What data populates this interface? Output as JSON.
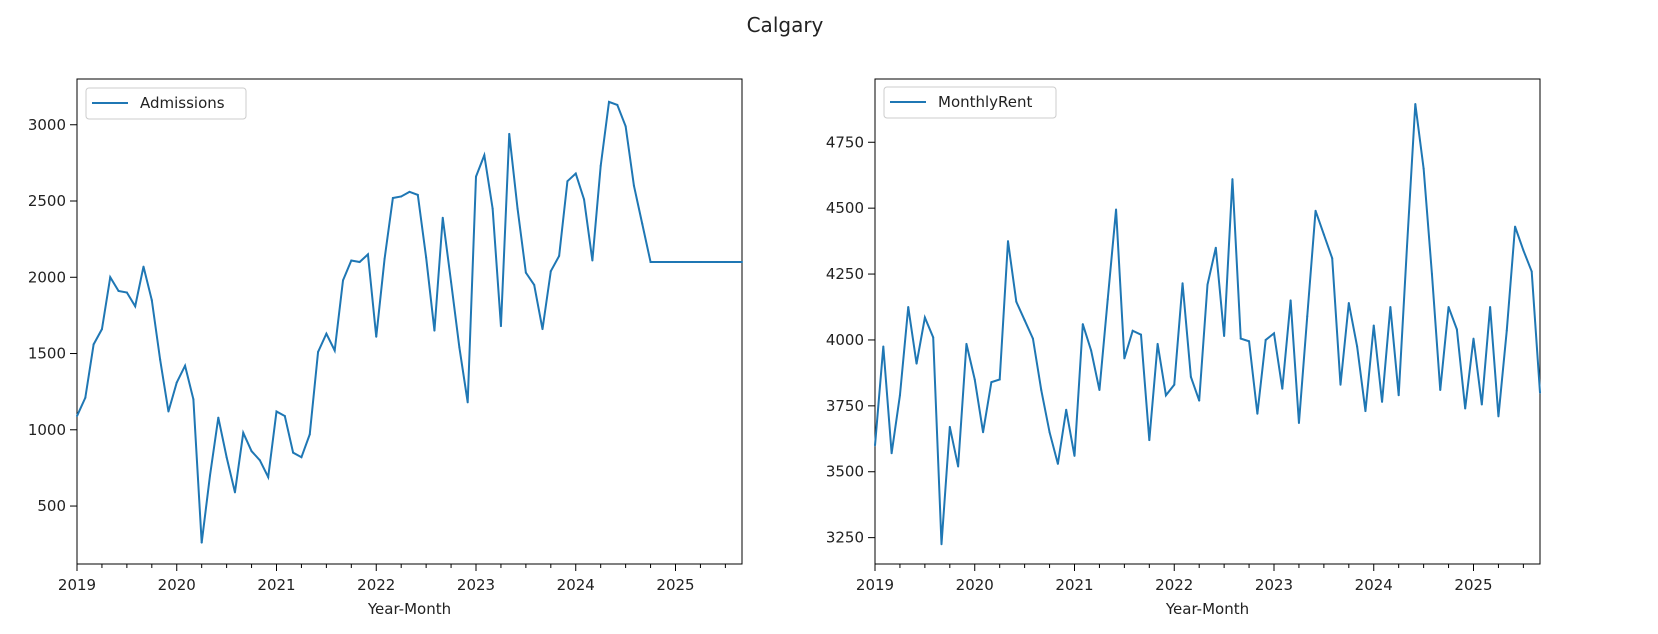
{
  "suptitle": "Calgary",
  "colors": {
    "series": "#1f77b4",
    "text": "#222222",
    "axes": "#000000"
  },
  "chart_data": [
    {
      "type": "line",
      "xlabel": "Year-Month",
      "ylabel": "",
      "xlim": [
        "2019-01",
        "2025-09"
      ],
      "ylim": [
        120,
        3300
      ],
      "x_tick_labels": [
        "2019",
        "2020",
        "2021",
        "2022",
        "2023",
        "2024",
        "2025"
      ],
      "y_ticks": [
        500,
        1000,
        1500,
        2000,
        2500,
        3000
      ],
      "y_tick_labels": [
        "500",
        "1000",
        "1500",
        "2000",
        "2500",
        "3000"
      ],
      "legend": "upper-left",
      "grid": false,
      "series": [
        {
          "name": "Admissions",
          "x": [
            "2019-01",
            "2019-02",
            "2019-03",
            "2019-04",
            "2019-05",
            "2019-06",
            "2019-07",
            "2019-08",
            "2019-09",
            "2019-10",
            "2019-11",
            "2019-12",
            "2020-01",
            "2020-02",
            "2020-03",
            "2020-04",
            "2020-05",
            "2020-06",
            "2020-07",
            "2020-08",
            "2020-09",
            "2020-10",
            "2020-11",
            "2020-12",
            "2021-01",
            "2021-02",
            "2021-03",
            "2021-04",
            "2021-05",
            "2021-06",
            "2021-07",
            "2021-08",
            "2021-09",
            "2021-10",
            "2021-11",
            "2021-12",
            "2022-01",
            "2022-02",
            "2022-03",
            "2022-04",
            "2022-05",
            "2022-06",
            "2022-07",
            "2022-08",
            "2022-09",
            "2022-10",
            "2022-11",
            "2022-12",
            "2023-01",
            "2023-02",
            "2023-03",
            "2023-04",
            "2023-05",
            "2023-06",
            "2023-07",
            "2023-08",
            "2023-09",
            "2023-10",
            "2023-11",
            "2023-12",
            "2024-01",
            "2024-02",
            "2024-03",
            "2024-04",
            "2024-05",
            "2024-06",
            "2024-07",
            "2024-08",
            "2024-09",
            "2024-10",
            "2024-11",
            "2024-12",
            "2025-01",
            "2025-02",
            "2025-03",
            "2025-04",
            "2025-05",
            "2025-06",
            "2025-07",
            "2025-08",
            "2025-09"
          ],
          "values": [
            1090,
            1210,
            1560,
            1660,
            2000,
            1910,
            1900,
            1810,
            2070,
            1850,
            1460,
            1120,
            1310,
            1420,
            1200,
            260,
            700,
            1080,
            820,
            590,
            980,
            860,
            800,
            690,
            1120,
            1090,
            850,
            820,
            970,
            1510,
            1630,
            1520,
            1980,
            2110,
            2100,
            2150,
            1610,
            2120,
            2520,
            2530,
            2560,
            2540,
            2130,
            1650,
            2390,
            1970,
            1540,
            1180,
            2660,
            2800,
            2450,
            1680,
            2940,
            2450,
            2030,
            1950,
            1660,
            2040,
            2140,
            2630,
            2680,
            2510,
            2110,
            2730,
            3150,
            3130,
            2990,
            2600,
            2350,
            2100,
            2100,
            2100,
            2100,
            2100,
            2100,
            2100,
            2100,
            2100,
            2100,
            2100,
            2100
          ]
        }
      ]
    },
    {
      "type": "line",
      "xlabel": "Year-Month",
      "ylabel": "",
      "xlim": [
        "2019-01",
        "2025-09"
      ],
      "ylim": [
        3150,
        4990
      ],
      "x_tick_labels": [
        "2019",
        "2020",
        "2021",
        "2022",
        "2023",
        "2024",
        "2025"
      ],
      "y_ticks": [
        3250,
        3500,
        3750,
        4000,
        4250,
        4500,
        4750
      ],
      "y_tick_labels": [
        "3250",
        "3500",
        "3750",
        "4000",
        "4250",
        "4500",
        "4750"
      ],
      "legend": "upper-left",
      "grid": false,
      "series": [
        {
          "name": "MonthlyRent",
          "x": [
            "2019-01",
            "2019-02",
            "2019-03",
            "2019-04",
            "2019-05",
            "2019-06",
            "2019-07",
            "2019-08",
            "2019-09",
            "2019-10",
            "2019-11",
            "2019-12",
            "2020-01",
            "2020-02",
            "2020-03",
            "2020-04",
            "2020-05",
            "2020-06",
            "2020-07",
            "2020-08",
            "2020-09",
            "2020-10",
            "2020-11",
            "2020-12",
            "2021-01",
            "2021-02",
            "2021-03",
            "2021-04",
            "2021-05",
            "2021-06",
            "2021-07",
            "2021-08",
            "2021-09",
            "2021-10",
            "2021-11",
            "2021-12",
            "2022-01",
            "2022-02",
            "2022-03",
            "2022-04",
            "2022-05",
            "2022-06",
            "2022-07",
            "2022-08",
            "2022-09",
            "2022-10",
            "2022-11",
            "2022-12",
            "2023-01",
            "2023-02",
            "2023-03",
            "2023-04",
            "2023-05",
            "2023-06",
            "2023-07",
            "2023-08",
            "2023-09",
            "2023-10",
            "2023-11",
            "2023-12",
            "2024-01",
            "2024-02",
            "2024-03",
            "2024-04",
            "2024-05",
            "2024-06",
            "2024-07",
            "2024-08",
            "2024-09",
            "2024-10",
            "2024-11",
            "2024-12",
            "2025-01",
            "2025-02",
            "2025-03",
            "2025-04",
            "2025-05",
            "2025-06",
            "2025-07",
            "2025-08",
            "2025-09"
          ],
          "values": [
            3600,
            3975,
            3570,
            3790,
            4125,
            3910,
            4085,
            4010,
            3225,
            3670,
            3520,
            3985,
            3850,
            3650,
            3840,
            3850,
            4375,
            4145,
            4075,
            4005,
            3810,
            3650,
            3530,
            3735,
            3560,
            4060,
            3960,
            3810,
            4155,
            4495,
            3930,
            4035,
            4020,
            3620,
            3985,
            3790,
            3830,
            4215,
            3860,
            3770,
            4210,
            4350,
            4015,
            4610,
            4005,
            3995,
            3720,
            4000,
            4025,
            3815,
            4150,
            3685,
            4090,
            4490,
            4400,
            4310,
            3830,
            4140,
            3975,
            3730,
            4055,
            3765,
            4125,
            3790,
            4355,
            4895,
            4650,
            4250,
            3810,
            4125,
            4040,
            3740,
            4005,
            3755,
            4125,
            3710,
            4035,
            4430,
            4340,
            4260,
            3800
          ]
        }
      ]
    }
  ]
}
